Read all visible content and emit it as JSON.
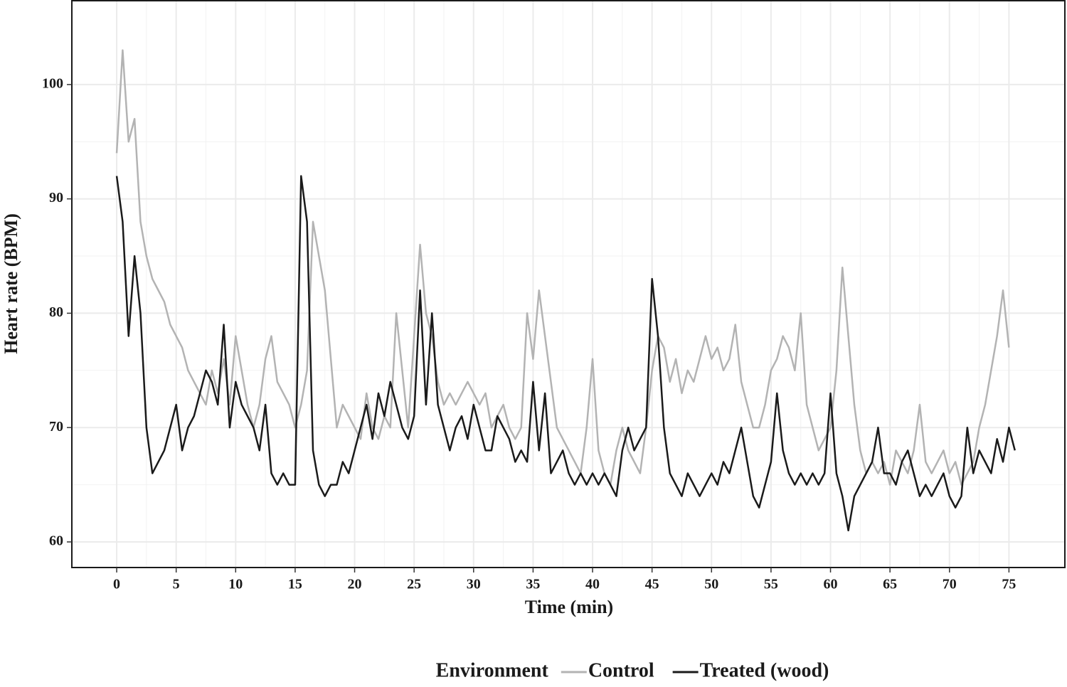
{
  "chart_data": {
    "type": "line",
    "x_label": "Time (min)",
    "y_label": "Heart rate (BPM)",
    "legend_title": "Environment",
    "legend": "bottom",
    "grid": true,
    "xlim": [
      -3.77,
      79.7
    ],
    "ylim": [
      57.76,
      107.33
    ],
    "xticks": [
      0,
      5,
      10,
      15,
      20,
      25,
      30,
      35,
      40,
      45,
      50,
      55,
      60,
      65,
      70,
      75
    ],
    "yticks": [
      60,
      70,
      80,
      90,
      100
    ],
    "x": [
      0,
      0.5,
      1,
      1.5,
      2,
      2.5,
      3,
      3.5,
      4,
      4.5,
      5,
      5.5,
      6,
      6.5,
      7,
      7.5,
      8,
      8.5,
      9,
      9.5,
      10,
      10.5,
      11,
      11.5,
      12,
      12.5,
      13,
      13.5,
      14,
      14.5,
      15,
      15.5,
      16,
      16.5,
      17,
      17.5,
      18,
      18.5,
      19,
      19.5,
      20,
      20.5,
      21,
      21.5,
      22,
      22.5,
      23,
      23.5,
      24,
      24.5,
      25,
      25.5,
      26,
      26.5,
      27,
      27.5,
      28,
      28.5,
      29,
      29.5,
      30,
      30.5,
      31,
      31.5,
      32,
      32.5,
      33,
      33.5,
      34,
      34.5,
      35,
      35.5,
      36,
      36.5,
      37,
      37.5,
      38,
      38.5,
      39,
      39.5,
      40,
      40.5,
      41,
      41.5,
      42,
      42.5,
      43,
      43.5,
      44,
      44.5,
      45,
      45.5,
      46,
      46.5,
      47,
      47.5,
      48,
      48.5,
      49,
      49.5,
      50,
      50.5,
      51,
      51.5,
      52,
      52.5,
      53,
      53.5,
      54,
      54.5,
      55,
      55.5,
      56,
      56.5,
      57,
      57.5,
      58,
      58.5,
      59,
      59.5,
      60,
      60.5,
      61,
      61.5,
      62,
      62.5,
      63,
      63.5,
      64,
      64.5,
      65,
      65.5,
      66,
      66.5,
      67,
      67.5,
      68,
      68.5,
      69,
      69.5,
      70,
      70.5,
      71,
      71.5,
      72,
      72.5,
      73,
      73.5,
      74,
      74.5,
      75,
      75.5
    ],
    "series": [
      {
        "name": "Control",
        "color": "#b3b3b3",
        "values": [
          94,
          103,
          95,
          97,
          88,
          85,
          83,
          82,
          81,
          79,
          78,
          77,
          75,
          74,
          73,
          72,
          75,
          73,
          76,
          72,
          78,
          75,
          72,
          70,
          72,
          76,
          78,
          74,
          73,
          72,
          70,
          72,
          75,
          88,
          85,
          82,
          76,
          70,
          72,
          71,
          70,
          69,
          73,
          70,
          69,
          71,
          70,
          80,
          75,
          70,
          78,
          86,
          80,
          78,
          74,
          72,
          73,
          72,
          73,
          74,
          73,
          72,
          73,
          70,
          71,
          72,
          70,
          69,
          70,
          80,
          76,
          82,
          78,
          74,
          70,
          69,
          68,
          67,
          66,
          70,
          76,
          68,
          66,
          65,
          68,
          70,
          68,
          67,
          66,
          70,
          75,
          78,
          77,
          74,
          76,
          73,
          75,
          74,
          76,
          78,
          76,
          77,
          75,
          76,
          79,
          74,
          72,
          70,
          70,
          72,
          75,
          76,
          78,
          77,
          75,
          80,
          72,
          70,
          68,
          69,
          70,
          75,
          84,
          78,
          72,
          68,
          66,
          67,
          66,
          67,
          65,
          68,
          67,
          66,
          68,
          72,
          67,
          66,
          67,
          68,
          66,
          67,
          65,
          66,
          67,
          70,
          72,
          75,
          78,
          82,
          77,
          null
        ]
      },
      {
        "name": "Treated (wood)",
        "color": "#1a1a1a",
        "values": [
          92,
          88,
          78,
          85,
          80,
          70,
          66,
          67,
          68,
          70,
          72,
          68,
          70,
          71,
          73,
          75,
          74,
          72,
          79,
          70,
          74,
          72,
          71,
          70,
          68,
          72,
          66,
          65,
          66,
          65,
          65,
          92,
          88,
          68,
          65,
          64,
          65,
          65,
          67,
          66,
          68,
          70,
          72,
          69,
          73,
          71,
          74,
          72,
          70,
          69,
          71,
          82,
          72,
          80,
          72,
          70,
          68,
          70,
          71,
          69,
          72,
          70,
          68,
          68,
          71,
          70,
          69,
          67,
          68,
          67,
          74,
          68,
          73,
          66,
          67,
          68,
          66,
          65,
          66,
          65,
          66,
          65,
          66,
          65,
          64,
          68,
          70,
          68,
          69,
          70,
          83,
          78,
          70,
          66,
          65,
          64,
          66,
          65,
          64,
          65,
          66,
          65,
          67,
          66,
          68,
          70,
          67,
          64,
          63,
          65,
          67,
          73,
          68,
          66,
          65,
          66,
          65,
          66,
          65,
          66,
          73,
          66,
          64,
          61,
          64,
          65,
          66,
          67,
          70,
          66,
          66,
          65,
          67,
          68,
          66,
          64,
          65,
          64,
          65,
          66,
          64,
          63,
          64,
          70,
          66,
          68,
          67,
          66,
          69,
          67,
          70,
          68
        ]
      }
    ]
  }
}
